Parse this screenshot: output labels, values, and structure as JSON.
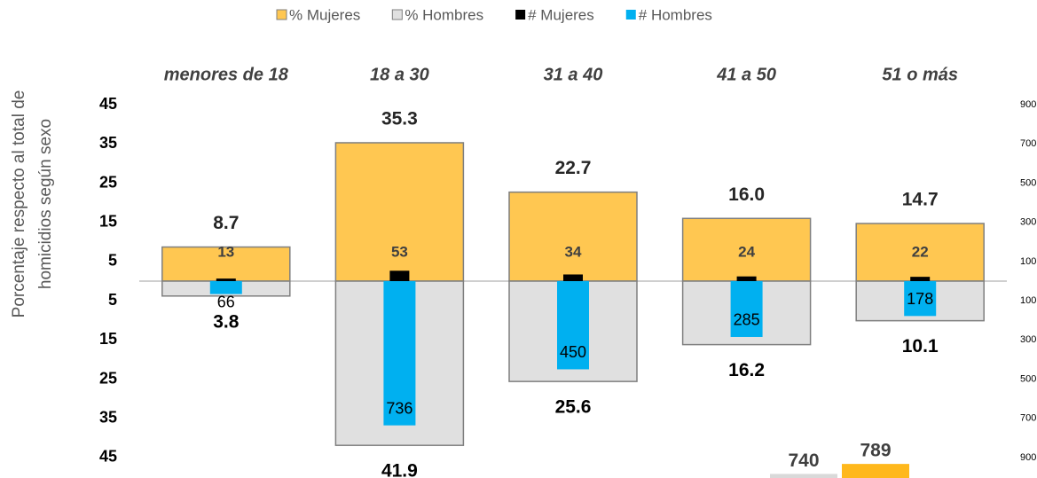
{
  "chart_data": {
    "type": "diverging_bar",
    "ylabel": [
      "Porcentaje respecto al total de",
      "homicidios según sexo"
    ],
    "categories": [
      "menores de 18",
      "18 a 30",
      "31 a 40",
      "41 a 50",
      "51 o más"
    ],
    "series": [
      {
        "name": "% Mujeres",
        "color": "#FFC751",
        "values": [
          8.7,
          35.3,
          22.7,
          16.0,
          14.7
        ],
        "value_labels": [
          "8.7",
          "35.3",
          "22.7",
          "16.0",
          "14.7"
        ]
      },
      {
        "name": "% Hombres",
        "color": "#E0E0E0",
        "values": [
          -3.8,
          -41.9,
          -25.6,
          -16.2,
          -10.1
        ],
        "value_labels": [
          "3.8",
          "41.9",
          "25.6",
          "16.2",
          "10.1"
        ]
      },
      {
        "name": "# Mujeres",
        "color": "#000000",
        "axis": "y2",
        "values": [
          13,
          53,
          34,
          24,
          22
        ]
      },
      {
        "name": "# Hombres",
        "color": "#00B0F0",
        "axis": "y2",
        "values": [
          -66,
          -736,
          -450,
          -285,
          -178
        ],
        "value_labels": [
          "66",
          "736",
          "450",
          "285",
          "178"
        ]
      }
    ],
    "ylim": [
      -50,
      50
    ],
    "yticks": [
      45,
      35,
      25,
      15,
      5,
      {
        "value": -5,
        "label": "5"
      },
      {
        "value": -15,
        "label": "15"
      },
      {
        "value": -25,
        "label": "25"
      },
      {
        "value": -35,
        "label": "35"
      },
      {
        "value": -45,
        "label": "45"
      }
    ],
    "y2lim": [
      -1000,
      1000
    ],
    "y2ticks": [
      900,
      700,
      500,
      300,
      100,
      {
        "value": -100,
        "label": "100"
      },
      {
        "value": -300,
        "label": "300"
      },
      {
        "value": -500,
        "label": "500"
      },
      {
        "value": -700,
        "label": "700"
      },
      {
        "value": -900,
        "label": "900"
      }
    ],
    "extra_bars": {
      "values": [
        740,
        789
      ],
      "colors": [
        "#D9D9D9",
        "#FFB81C"
      ]
    }
  }
}
